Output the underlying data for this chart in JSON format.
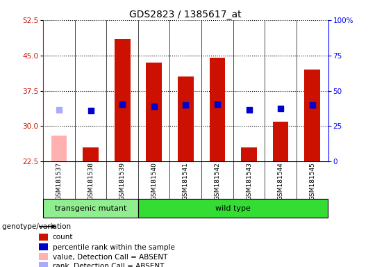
{
  "title": "GDS2823 / 1385617_at",
  "samples": [
    "GSM181537",
    "GSM181538",
    "GSM181539",
    "GSM181540",
    "GSM181541",
    "GSM181542",
    "GSM181543",
    "GSM181544",
    "GSM181545"
  ],
  "count_values": [
    28.0,
    25.5,
    48.5,
    43.5,
    40.5,
    44.5,
    25.5,
    31.0,
    42.0
  ],
  "count_absent": [
    true,
    false,
    false,
    false,
    false,
    false,
    false,
    false,
    false
  ],
  "percentile_values": [
    36.5,
    36.0,
    40.5,
    39.0,
    40.0,
    40.5,
    36.5,
    37.5,
    40.0
  ],
  "percentile_absent": [
    true,
    false,
    false,
    false,
    false,
    false,
    false,
    false,
    false
  ],
  "groups": [
    {
      "label": "transgenic mutant",
      "start": 0,
      "end": 3,
      "color": "#90EE90"
    },
    {
      "label": "wild type",
      "start": 3,
      "end": 9,
      "color": "#33DD33"
    }
  ],
  "ylim_left": [
    22.5,
    52.5
  ],
  "ylim_right": [
    0,
    100
  ],
  "yticks_left": [
    22.5,
    30.0,
    37.5,
    45.0,
    52.5
  ],
  "yticks_right": [
    0,
    25,
    50,
    75,
    100
  ],
  "ytick_labels_right": [
    "0",
    "25",
    "50",
    "75",
    "100%"
  ],
  "bar_color_present": "#CC1100",
  "bar_color_absent": "#FFB0B0",
  "dot_color_present": "#0000CC",
  "dot_color_absent": "#AAAAFF",
  "gray_bg": "#C8C8C8",
  "bar_width": 0.5,
  "dot_size": 35,
  "genotype_label": "genotype/variation"
}
